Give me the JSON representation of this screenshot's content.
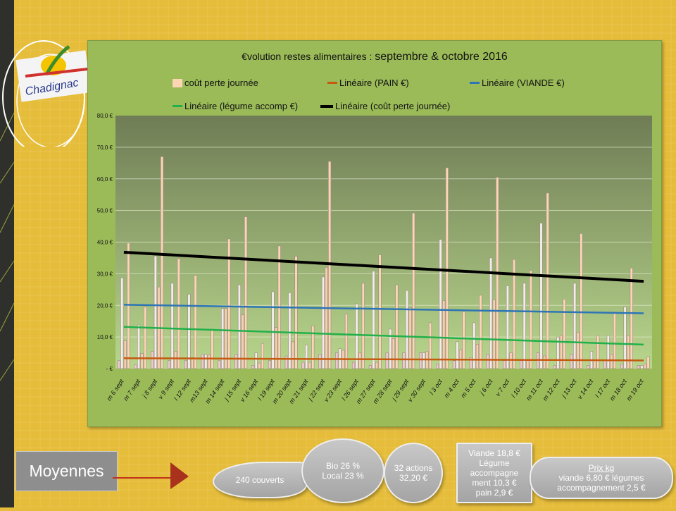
{
  "chart_data": {
    "type": "bar",
    "title": "€volution restes alimentaires : septembre & octobre 2016",
    "title_main": "€volution restes alimentaires : ",
    "title_emph": "septembre & octobre 2016",
    "categories": [
      "m 6 sept",
      "m 7 sept",
      "j 8 sept",
      "v 9 sept",
      "l 12 sept",
      "m13 sept",
      "m 14 sept",
      "j 15 sept",
      "v 16 sept",
      "l 19 sept",
      "m 20 sept",
      "m 21 sept",
      "j 22 sept",
      "v 23 sept",
      "l 26 sept",
      "m 27 sept",
      "m 28 sept",
      "j 29 sept",
      "v 30 sept",
      "l 3 oct",
      "m 4 oct",
      "m 5 oct",
      "j 6 oct",
      "v 7 oct",
      "l 10 oct",
      "m 11 oct",
      "m 12 oct",
      "j 13 oct",
      "v 14 oct",
      "l 17 oct",
      "m 18 oct",
      "m 19 oct"
    ],
    "series": [
      {
        "name": "PAIN €",
        "color": "#f2c6d0",
        "values": [
          2.5,
          1.2,
          5.5,
          2.5,
          2.5,
          4.5,
          2.5,
          4.5,
          1,
          2.5,
          4,
          2,
          4.5,
          5,
          2,
          1,
          5,
          5,
          5,
          1.5,
          2.5,
          3.5,
          4.5,
          2.5,
          2.5,
          5,
          1,
          4.5,
          1,
          2.5,
          1.5,
          1
        ]
      },
      {
        "name": "VIANDE €",
        "color": "#f4ece8",
        "values": [
          28.7,
          13.8,
          35.6,
          27,
          23.5,
          4.5,
          19,
          26.5,
          5,
          24.3,
          24,
          7.5,
          29,
          6.3,
          20.5,
          30.8,
          12.5,
          24.7,
          5,
          40.8,
          8.5,
          14.5,
          35,
          26.2,
          27,
          46,
          10,
          27,
          5.5,
          10.5,
          19.5,
          1
        ]
      },
      {
        "name": "légume accomp €",
        "color": "#f8cfae",
        "values": [
          8.8,
          4.8,
          25.8,
          5.5,
          3.5,
          4.3,
          19,
          17,
          1.8,
          13,
          8.5,
          2,
          32,
          5.8,
          5,
          2,
          9.5,
          19.3,
          5.5,
          21.5,
          6,
          7.7,
          21.8,
          5,
          2.5,
          4,
          10.5,
          11.5,
          2.5,
          4.5,
          10.5,
          1.5
        ]
      },
      {
        "name": "coût perte  journée",
        "color": "#fcd5b5",
        "values": [
          39.7,
          19.5,
          67,
          34.8,
          29.5,
          12.5,
          41,
          48,
          8,
          38.8,
          35.5,
          13.5,
          65.5,
          17.3,
          27,
          36,
          26.5,
          49.2,
          14.5,
          63.5,
          18,
          23.2,
          60.5,
          34.5,
          31,
          55.5,
          22,
          42.7,
          10.5,
          17.5,
          31.8,
          3.8
        ]
      }
    ],
    "trendlines": [
      {
        "name": "Linéaire (PAIN  €)",
        "color": "#c55a11",
        "start": 3.3,
        "end": 2.6
      },
      {
        "name": "Linéaire (VIANDE  €)",
        "color": "#2e75b6",
        "start": 20.2,
        "end": 17.5
      },
      {
        "name": "Linéaire (légume accomp  €)",
        "color": "#22b04b",
        "start": 13.2,
        "end": 7.6
      },
      {
        "name": "Linéaire (coût perte  journée)",
        "color": "#000000",
        "start": 36.8,
        "end": 27.6
      }
    ],
    "legend": {
      "bar_label": "coût perte  journée",
      "position": "top"
    },
    "yticks": [
      "- €",
      "10,0 €",
      "20,0 €",
      "30,0 €",
      "40,0 €",
      "50,0 €",
      "60,0 €",
      "70,0 €",
      "80,0 €"
    ],
    "ylim": [
      0,
      80
    ],
    "grid": true
  },
  "logo": {
    "text": "Chadignac"
  },
  "summary": {
    "label": "Moyennes",
    "couverts": "240 couverts",
    "bio": "Bio 26 %",
    "local": "Local 23 %",
    "actions": "32 actions",
    "actions_cost": "32,20 €",
    "viande": "Viande 18,8 €",
    "legume1": "Légume",
    "legume2": "accompagne",
    "legume3": "ment 10,3 €",
    "pain": "pain 2,9 €",
    "prix_title": "Prix kg",
    "prix_line1": "viande 6,80 €  légumes",
    "prix_line2": "accompagnement 2,5 €"
  }
}
